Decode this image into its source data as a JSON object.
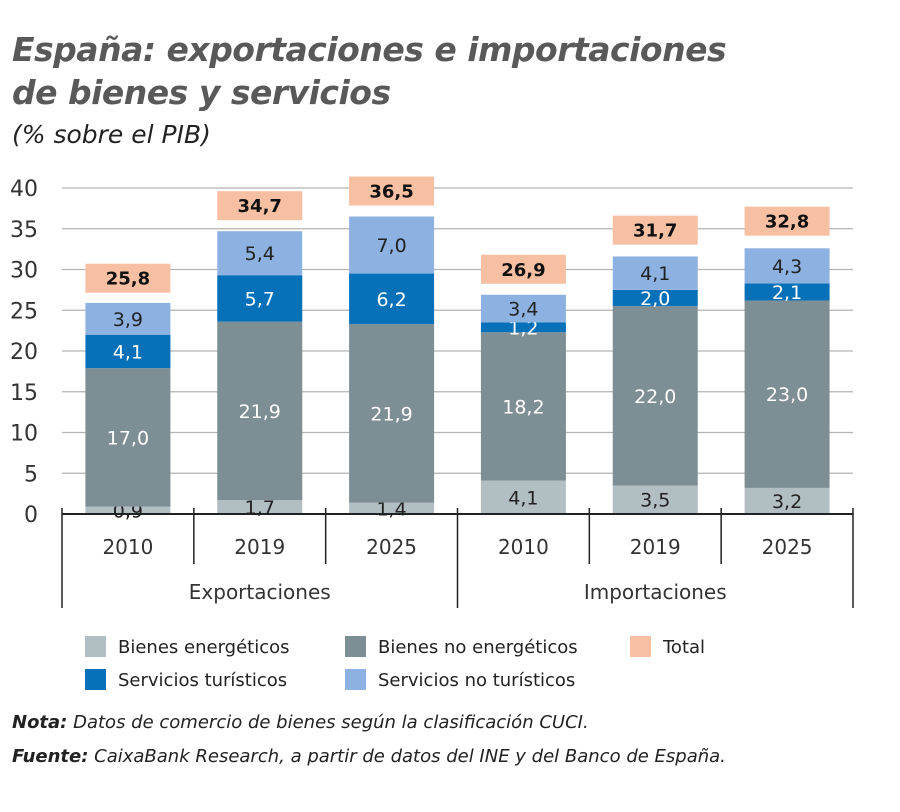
{
  "chart_data": {
    "type": "bar",
    "stacked": true,
    "title": "España: exportaciones e importaciones de bienes y servicios",
    "subtitle": "(% sobre el PIB)",
    "groups": [
      "Exportaciones",
      "Importaciones"
    ],
    "categories": [
      "2010",
      "2019",
      "2025",
      "2010",
      "2019",
      "2025"
    ],
    "series": [
      {
        "name": "Bienes energéticos",
        "color": "#b1bec2",
        "values": [
          0.9,
          1.7,
          1.4,
          4.1,
          3.5,
          3.2
        ]
      },
      {
        "name": "Bienes no energéticos",
        "color": "#7d8e95",
        "values": [
          17.0,
          21.9,
          21.9,
          18.2,
          22.0,
          23.0
        ]
      },
      {
        "name": "Servicios turísticos",
        "color": "#0671b8",
        "values": [
          4.1,
          5.7,
          6.2,
          1.2,
          2.0,
          2.1
        ]
      },
      {
        "name": "Servicios no turísticos",
        "color": "#8db1e0",
        "values": [
          3.9,
          5.4,
          7.0,
          3.4,
          4.1,
          4.3
        ]
      }
    ],
    "total": {
      "name": "Total",
      "color": "#f8c0a3",
      "values": [
        25.8,
        34.7,
        36.5,
        26.9,
        31.7,
        32.8
      ]
    },
    "ylim": [
      0,
      40
    ],
    "yticks": [
      0,
      5,
      10,
      15,
      20,
      25,
      30,
      35,
      40
    ],
    "grid": true,
    "legend_position": "bottom",
    "decimal_separator": ","
  },
  "notes": {
    "nota_label": "Nota:",
    "nota_text": " Datos de comercio de bienes según la clasificación CUCI.",
    "fuente_label": "Fuente:",
    "fuente_text": " CaixaBank Research, a partir de datos del INE y del Banco de España."
  }
}
